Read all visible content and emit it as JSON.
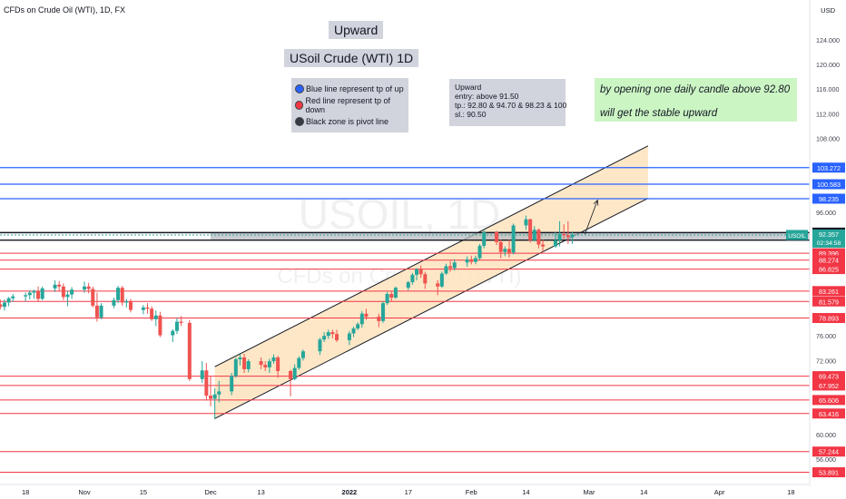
{
  "header": {
    "title": "CFDs on Crude Oil (WTI), 1D, FX",
    "currency": "USD"
  },
  "watermark": {
    "symbol": "USOIL, 1D",
    "description": "CFDs on Crude Oil (WTI)"
  },
  "annotations": {
    "title": "Upward",
    "subtitle": "USoil Crude (WTI) 1D",
    "legend": [
      {
        "color": "#2962ff",
        "icon": "blue-circle-icon",
        "text": "Blue line represent tp of up"
      },
      {
        "color": "#f23645",
        "icon": "red-circle-icon",
        "text": "Red line represent tp of down"
      },
      {
        "color": "#363a45",
        "icon": "black-circle-icon",
        "text": "Black zone is pivot line"
      }
    ],
    "note_lines": [
      "Upward",
      "",
      "entry: above 91.50",
      "tp.: 92.80 & 94.70 & 98.23 & 100",
      "sl.: 90.50"
    ],
    "green_lines": [
      "by opening one daily candle above 92.80",
      "will get the stable upward"
    ]
  },
  "colors": {
    "up": "#26a69a",
    "down": "#ef5350",
    "blue_line": "#2962ff",
    "red_line": "#f23645",
    "channel_fill": "#fde3bd",
    "pivot_zone": "#b8bbc2",
    "green_box": "#ccf5c4"
  },
  "chart_data": {
    "type": "candlestick",
    "symbol": "USOIL",
    "timeframe": "1D",
    "ylim": [
      52.5,
      127.5
    ],
    "y_ticks": [
      "124.000",
      "120.000",
      "116.000",
      "112.000",
      "108.000",
      "96.000",
      "76.000",
      "72.000",
      "60.000",
      "56.000"
    ],
    "x_ticks": [
      {
        "label": "18",
        "date": "2021-10-18"
      },
      {
        "label": "Nov",
        "date": "2021-11-01"
      },
      {
        "label": "15",
        "date": "2021-11-15"
      },
      {
        "label": "Dec",
        "date": "2021-12-01"
      },
      {
        "label": "13",
        "date": "2021-12-13"
      },
      {
        "label": "2022",
        "date": "2022-01-03"
      },
      {
        "label": "17",
        "date": "2022-01-17"
      },
      {
        "label": "Feb",
        "date": "2022-02-01"
      },
      {
        "label": "14",
        "date": "2022-02-14"
      },
      {
        "label": "Mar",
        "date": "2022-03-01"
      },
      {
        "label": "14",
        "date": "2022-03-14"
      },
      {
        "label": "Apr",
        "date": "2022-04-01"
      },
      {
        "label": "18",
        "date": "2022-04-18"
      }
    ],
    "bold_x_ticks": [
      "2022"
    ],
    "blue_levels": [
      {
        "value": 103.272,
        "label": "103.272"
      },
      {
        "value": 100.583,
        "label": "100.583"
      },
      {
        "value": 98.235,
        "label": "98.235"
      }
    ],
    "red_levels": [
      {
        "value": 89.396,
        "label": "89.396"
      },
      {
        "value": 88.274,
        "label": "88.274"
      },
      {
        "value": 86.825,
        "label": "86.825"
      },
      {
        "value": 83.261,
        "label": "83.261"
      },
      {
        "value": 81.579,
        "label": "81.579"
      },
      {
        "value": 78.893,
        "label": "78.893"
      },
      {
        "value": 69.473,
        "label": "69.473"
      },
      {
        "value": 67.952,
        "label": "67.952"
      },
      {
        "value": 65.606,
        "label": "65.606"
      },
      {
        "value": 63.416,
        "label": "63.416"
      },
      {
        "value": 57.244,
        "label": "57.244"
      },
      {
        "value": 53.891,
        "label": "53.891"
      }
    ],
    "black_levels": [
      {
        "value": 92.739,
        "label": "92.739"
      },
      {
        "value": 91.522,
        "label": "91.522"
      }
    ],
    "pivot_zone": [
      91.522,
      92.739
    ],
    "current_price": {
      "symbol": "USOIL",
      "value": 92.357,
      "label": "92.357",
      "countdown": "02:34:58"
    },
    "channel": {
      "lower": [
        {
          "date": "2021-12-02",
          "value": 62.6
        },
        {
          "date": "2022-03-15",
          "value": 98.3
        }
      ],
      "upper": [
        {
          "date": "2021-12-02",
          "value": 71.0
        },
        {
          "date": "2022-03-15",
          "value": 106.8
        }
      ]
    },
    "projection_arrow": [
      {
        "date": "2022-02-28",
        "value": 92.5
      },
      {
        "date": "2022-03-03",
        "value": 98.0
      }
    ],
    "candles": [
      {
        "date": "2021-10-11",
        "o": 80.3,
        "h": 81.6,
        "l": 79.6,
        "c": 81.1
      },
      {
        "date": "2021-10-12",
        "o": 81.1,
        "h": 81.9,
        "l": 80.3,
        "c": 80.7
      },
      {
        "date": "2021-10-13",
        "o": 80.7,
        "h": 81.9,
        "l": 80.1,
        "c": 81.4
      },
      {
        "date": "2021-10-14",
        "o": 81.4,
        "h": 82.3,
        "l": 80.8,
        "c": 82.1
      },
      {
        "date": "2021-10-15",
        "o": 82.1,
        "h": 82.8,
        "l": 81.5,
        "c": 82.4
      },
      {
        "date": "2021-10-18",
        "o": 82.4,
        "h": 83.0,
        "l": 81.6,
        "c": 82.6
      },
      {
        "date": "2021-10-19",
        "o": 82.6,
        "h": 83.4,
        "l": 81.9,
        "c": 83.0
      },
      {
        "date": "2021-10-20",
        "o": 83.0,
        "h": 83.5,
        "l": 82.0,
        "c": 83.3
      },
      {
        "date": "2021-10-21",
        "o": 83.3,
        "h": 84.0,
        "l": 81.5,
        "c": 82.0
      },
      {
        "date": "2021-10-22",
        "o": 82.0,
        "h": 84.0,
        "l": 81.8,
        "c": 83.7
      },
      {
        "date": "2021-10-25",
        "o": 83.7,
        "h": 85.0,
        "l": 83.1,
        "c": 84.3
      },
      {
        "date": "2021-10-26",
        "o": 84.3,
        "h": 84.9,
        "l": 83.2,
        "c": 84.0
      },
      {
        "date": "2021-10-27",
        "o": 84.0,
        "h": 84.5,
        "l": 81.8,
        "c": 82.3
      },
      {
        "date": "2021-10-28",
        "o": 82.3,
        "h": 83.3,
        "l": 80.8,
        "c": 82.7
      },
      {
        "date": "2021-10-29",
        "o": 82.7,
        "h": 83.9,
        "l": 82.0,
        "c": 83.5
      },
      {
        "date": "2021-11-01",
        "o": 83.5,
        "h": 84.8,
        "l": 83.0,
        "c": 84.0
      },
      {
        "date": "2021-11-02",
        "o": 84.0,
        "h": 84.6,
        "l": 82.9,
        "c": 83.6
      },
      {
        "date": "2021-11-03",
        "o": 83.6,
        "h": 84.0,
        "l": 80.6,
        "c": 80.9
      },
      {
        "date": "2021-11-04",
        "o": 80.9,
        "h": 83.0,
        "l": 78.3,
        "c": 79.0
      },
      {
        "date": "2021-11-05",
        "o": 79.0,
        "h": 81.3,
        "l": 78.7,
        "c": 80.9
      },
      {
        "date": "2021-11-08",
        "o": 80.9,
        "h": 82.2,
        "l": 80.5,
        "c": 81.8
      },
      {
        "date": "2021-11-09",
        "o": 81.8,
        "h": 84.1,
        "l": 81.3,
        "c": 83.8
      },
      {
        "date": "2021-11-10",
        "o": 83.8,
        "h": 84.1,
        "l": 80.9,
        "c": 81.4
      },
      {
        "date": "2021-11-11",
        "o": 81.4,
        "h": 82.0,
        "l": 80.6,
        "c": 81.6
      },
      {
        "date": "2021-11-12",
        "o": 81.6,
        "h": 82.0,
        "l": 79.8,
        "c": 80.2
      },
      {
        "date": "2021-11-15",
        "o": 80.2,
        "h": 81.0,
        "l": 79.5,
        "c": 80.6
      },
      {
        "date": "2021-11-16",
        "o": 80.6,
        "h": 81.3,
        "l": 79.6,
        "c": 80.4
      },
      {
        "date": "2021-11-17",
        "o": 80.4,
        "h": 80.8,
        "l": 78.4,
        "c": 78.7
      },
      {
        "date": "2021-11-18",
        "o": 78.7,
        "h": 80.1,
        "l": 77.6,
        "c": 79.3
      },
      {
        "date": "2021-11-19",
        "o": 79.3,
        "h": 79.9,
        "l": 75.8,
        "c": 76.1
      },
      {
        "date": "2021-11-22",
        "o": 76.1,
        "h": 77.1,
        "l": 75.0,
        "c": 76.8
      },
      {
        "date": "2021-11-23",
        "o": 76.8,
        "h": 78.9,
        "l": 76.3,
        "c": 78.3
      },
      {
        "date": "2021-11-24",
        "o": 78.3,
        "h": 79.2,
        "l": 77.6,
        "c": 78.1
      },
      {
        "date": "2021-11-26",
        "o": 78.1,
        "h": 78.6,
        "l": 68.7,
        "c": 69.0
      },
      {
        "date": "2021-11-29",
        "o": 69.0,
        "h": 71.9,
        "l": 68.4,
        "c": 70.4
      },
      {
        "date": "2021-11-30",
        "o": 70.4,
        "h": 71.6,
        "l": 65.5,
        "c": 66.3
      },
      {
        "date": "2021-12-01",
        "o": 66.3,
        "h": 69.5,
        "l": 64.6,
        "c": 65.8
      },
      {
        "date": "2021-12-02",
        "o": 65.8,
        "h": 67.5,
        "l": 62.5,
        "c": 66.5
      },
      {
        "date": "2021-12-03",
        "o": 66.5,
        "h": 68.7,
        "l": 65.2,
        "c": 67.0
      },
      {
        "date": "2021-12-06",
        "o": 67.0,
        "h": 70.0,
        "l": 66.4,
        "c": 69.5
      },
      {
        "date": "2021-12-07",
        "o": 69.5,
        "h": 72.5,
        "l": 69.2,
        "c": 72.2
      },
      {
        "date": "2021-12-08",
        "o": 72.2,
        "h": 73.0,
        "l": 71.2,
        "c": 72.5
      },
      {
        "date": "2021-12-09",
        "o": 72.5,
        "h": 73.1,
        "l": 70.0,
        "c": 70.6
      },
      {
        "date": "2021-12-10",
        "o": 70.6,
        "h": 72.2,
        "l": 70.1,
        "c": 71.9
      },
      {
        "date": "2021-12-13",
        "o": 71.9,
        "h": 72.5,
        "l": 70.6,
        "c": 71.3
      },
      {
        "date": "2021-12-14",
        "o": 71.3,
        "h": 71.9,
        "l": 70.3,
        "c": 70.9
      },
      {
        "date": "2021-12-15",
        "o": 70.9,
        "h": 72.3,
        "l": 70.0,
        "c": 71.9
      },
      {
        "date": "2021-12-16",
        "o": 71.9,
        "h": 73.0,
        "l": 71.5,
        "c": 72.5
      },
      {
        "date": "2021-12-17",
        "o": 72.5,
        "h": 72.8,
        "l": 69.2,
        "c": 70.3
      },
      {
        "date": "2021-12-20",
        "o": 70.3,
        "h": 70.5,
        "l": 66.2,
        "c": 69.0
      },
      {
        "date": "2021-12-21",
        "o": 69.0,
        "h": 71.4,
        "l": 68.8,
        "c": 70.8
      },
      {
        "date": "2021-12-22",
        "o": 70.8,
        "h": 72.7,
        "l": 70.5,
        "c": 72.4
      },
      {
        "date": "2021-12-23",
        "o": 72.4,
        "h": 73.8,
        "l": 72.0,
        "c": 73.5
      },
      {
        "date": "2021-12-27",
        "o": 73.5,
        "h": 75.7,
        "l": 72.9,
        "c": 75.4
      },
      {
        "date": "2021-12-28",
        "o": 75.4,
        "h": 76.6,
        "l": 75.0,
        "c": 76.0
      },
      {
        "date": "2021-12-29",
        "o": 76.0,
        "h": 77.0,
        "l": 75.5,
        "c": 76.6
      },
      {
        "date": "2021-12-30",
        "o": 76.6,
        "h": 77.0,
        "l": 75.6,
        "c": 76.3
      },
      {
        "date": "2021-12-31",
        "o": 76.3,
        "h": 77.0,
        "l": 75.0,
        "c": 75.3
      },
      {
        "date": "2022-01-03",
        "o": 75.3,
        "h": 76.8,
        "l": 74.5,
        "c": 76.4
      },
      {
        "date": "2022-01-04",
        "o": 76.4,
        "h": 77.5,
        "l": 75.8,
        "c": 77.2
      },
      {
        "date": "2022-01-05",
        "o": 77.2,
        "h": 78.2,
        "l": 76.9,
        "c": 77.9
      },
      {
        "date": "2022-01-06",
        "o": 77.9,
        "h": 80.0,
        "l": 77.3,
        "c": 79.6
      },
      {
        "date": "2022-01-07",
        "o": 79.6,
        "h": 80.4,
        "l": 78.6,
        "c": 79.1
      },
      {
        "date": "2022-01-10",
        "o": 79.1,
        "h": 79.6,
        "l": 77.4,
        "c": 78.4
      },
      {
        "date": "2022-01-11",
        "o": 78.4,
        "h": 81.6,
        "l": 78.1,
        "c": 81.3
      },
      {
        "date": "2022-01-12",
        "o": 81.3,
        "h": 83.1,
        "l": 81.0,
        "c": 82.8
      },
      {
        "date": "2022-01-13",
        "o": 82.8,
        "h": 83.3,
        "l": 81.6,
        "c": 82.2
      },
      {
        "date": "2022-01-14",
        "o": 82.2,
        "h": 84.0,
        "l": 82.0,
        "c": 83.8
      },
      {
        "date": "2022-01-17",
        "o": 83.8,
        "h": 84.9,
        "l": 83.4,
        "c": 84.7
      },
      {
        "date": "2022-01-18",
        "o": 84.7,
        "h": 86.2,
        "l": 84.3,
        "c": 85.9
      },
      {
        "date": "2022-01-19",
        "o": 85.9,
        "h": 87.0,
        "l": 85.0,
        "c": 86.8
      },
      {
        "date": "2022-01-20",
        "o": 86.8,
        "h": 87.4,
        "l": 85.4,
        "c": 86.0
      },
      {
        "date": "2022-01-21",
        "o": 86.0,
        "h": 86.4,
        "l": 83.6,
        "c": 84.5
      },
      {
        "date": "2022-01-24",
        "o": 84.5,
        "h": 85.0,
        "l": 82.6,
        "c": 84.0
      },
      {
        "date": "2022-01-25",
        "o": 84.0,
        "h": 86.4,
        "l": 83.8,
        "c": 86.1
      },
      {
        "date": "2022-01-26",
        "o": 86.1,
        "h": 87.7,
        "l": 85.9,
        "c": 87.3
      },
      {
        "date": "2022-01-27",
        "o": 87.3,
        "h": 88.1,
        "l": 86.4,
        "c": 87.0
      },
      {
        "date": "2022-01-28",
        "o": 87.0,
        "h": 88.4,
        "l": 86.6,
        "c": 87.9
      },
      {
        "date": "2022-01-31",
        "o": 87.9,
        "h": 88.9,
        "l": 87.2,
        "c": 88.4
      },
      {
        "date": "2022-02-01",
        "o": 88.4,
        "h": 89.0,
        "l": 87.6,
        "c": 88.0
      },
      {
        "date": "2022-02-02",
        "o": 88.0,
        "h": 89.0,
        "l": 87.6,
        "c": 88.6
      },
      {
        "date": "2022-02-03",
        "o": 88.6,
        "h": 90.9,
        "l": 88.3,
        "c": 90.6
      },
      {
        "date": "2022-02-04",
        "o": 90.6,
        "h": 93.2,
        "l": 90.2,
        "c": 92.8
      },
      {
        "date": "2022-02-07",
        "o": 92.8,
        "h": 93.0,
        "l": 90.7,
        "c": 91.2
      },
      {
        "date": "2022-02-08",
        "o": 91.2,
        "h": 91.6,
        "l": 88.6,
        "c": 89.6
      },
      {
        "date": "2022-02-09",
        "o": 89.6,
        "h": 90.5,
        "l": 88.9,
        "c": 90.1
      },
      {
        "date": "2022-02-10",
        "o": 90.1,
        "h": 91.6,
        "l": 88.7,
        "c": 89.5
      },
      {
        "date": "2022-02-11",
        "o": 89.5,
        "h": 94.2,
        "l": 89.2,
        "c": 93.9
      },
      {
        "date": "2022-02-14",
        "o": 93.9,
        "h": 95.5,
        "l": 93.2,
        "c": 94.9
      },
      {
        "date": "2022-02-15",
        "o": 94.9,
        "h": 95.0,
        "l": 91.1,
        "c": 91.5
      },
      {
        "date": "2022-02-16",
        "o": 91.5,
        "h": 93.8,
        "l": 91.3,
        "c": 93.2
      },
      {
        "date": "2022-02-17",
        "o": 93.2,
        "h": 93.4,
        "l": 90.2,
        "c": 90.8
      },
      {
        "date": "2022-02-18",
        "o": 90.8,
        "h": 91.6,
        "l": 89.6,
        "c": 90.5
      },
      {
        "date": "2022-02-21",
        "o": 90.5,
        "h": 92.8,
        "l": 90.3,
        "c": 91.5
      },
      {
        "date": "2022-02-22",
        "o": 91.5,
        "h": 94.6,
        "l": 90.5,
        "c": 92.5
      },
      {
        "date": "2022-02-23",
        "o": 92.5,
        "h": 94.1,
        "l": 91.7,
        "c": 92.3
      },
      {
        "date": "2022-02-24",
        "o": 92.3,
        "h": 94.6,
        "l": 90.9,
        "c": 92.0
      },
      {
        "date": "2022-02-25",
        "o": 92.0,
        "h": 92.8,
        "l": 90.9,
        "c": 92.4
      }
    ]
  }
}
